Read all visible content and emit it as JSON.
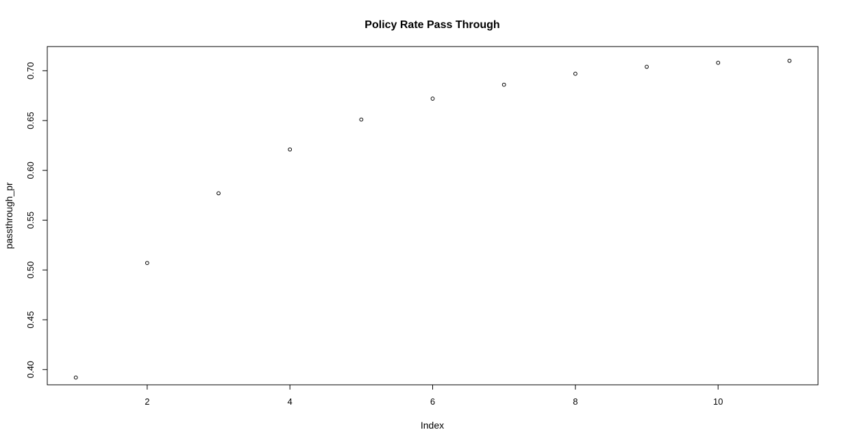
{
  "chart_data": {
    "type": "scatter",
    "title": "Policy Rate Pass Through",
    "xlabel": "Index",
    "ylabel": "passthrough_pr",
    "x": [
      1,
      2,
      3,
      4,
      5,
      6,
      7,
      8,
      9,
      10,
      11
    ],
    "y": [
      0.392,
      0.507,
      0.577,
      0.621,
      0.651,
      0.672,
      0.686,
      0.697,
      0.704,
      0.708,
      0.71
    ],
    "xlim": [
      0.6,
      11.4
    ],
    "ylim": [
      0.3847,
      0.7243
    ],
    "xticks": [
      2,
      4,
      6,
      8,
      10
    ],
    "xtick_labels": [
      "2",
      "4",
      "6",
      "8",
      "10"
    ],
    "yticks": [
      0.4,
      0.45,
      0.5,
      0.55,
      0.6,
      0.65,
      0.7
    ],
    "ytick_labels": [
      "0.40",
      "0.45",
      "0.50",
      "0.55",
      "0.60",
      "0.65",
      "0.70"
    ],
    "grid": false,
    "marker": "open-circle",
    "colors": {
      "marker": "#000000",
      "axis": "#000000",
      "background": "#ffffff"
    }
  }
}
